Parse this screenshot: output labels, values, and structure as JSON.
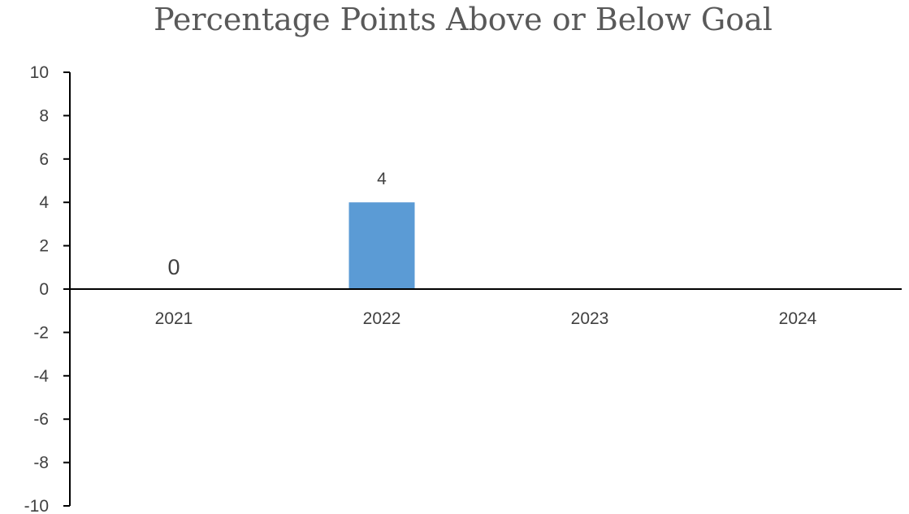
{
  "chart_data": {
    "type": "bar",
    "title": "Percentage Points Above or Below Goal",
    "categories": [
      "2021",
      "2022",
      "2023",
      "2024"
    ],
    "series": [
      {
        "values": [
          0,
          4,
          null,
          null
        ],
        "data_labels": [
          "0",
          "4",
          "",
          ""
        ]
      }
    ],
    "ylim": [
      -10,
      10
    ],
    "yticks": [
      10,
      8,
      6,
      4,
      2,
      0,
      -2,
      -4,
      -6,
      -8,
      -10
    ],
    "xlabel": "",
    "ylabel": "",
    "grid": false,
    "legend": "none",
    "bar_color": "#5b9bd5"
  }
}
